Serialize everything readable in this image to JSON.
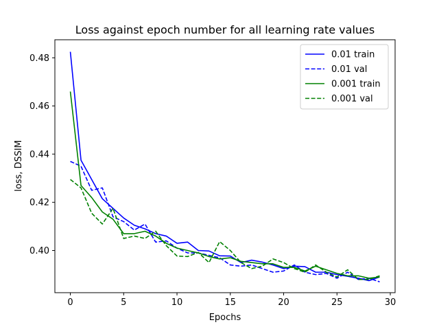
{
  "chart_data": {
    "type": "line",
    "title": "Loss against epoch number for all learning rate values",
    "xlabel": "Epochs",
    "ylabel": "loss, DSSIM",
    "xlim": [
      -1.45,
      30.45
    ],
    "ylim": [
      0.3825,
      0.4875
    ],
    "xticks": [
      0,
      5,
      10,
      15,
      20,
      25,
      30
    ],
    "yticks": [
      0.4,
      0.42,
      0.44,
      0.46,
      0.48
    ],
    "ytick_labels": [
      "0.40",
      "0.42",
      "0.44",
      "0.46",
      "0.48"
    ],
    "grid": false,
    "legend_position": "top-right",
    "x": [
      0,
      1,
      2,
      3,
      4,
      5,
      6,
      7,
      8,
      9,
      10,
      11,
      12,
      13,
      14,
      15,
      16,
      17,
      18,
      19,
      20,
      21,
      22,
      23,
      24,
      25,
      26,
      27,
      28,
      29
    ],
    "series": [
      {
        "name": "0.01 train",
        "color": "#0000ff",
        "dash": "solid",
        "values": [
          0.4825,
          0.4375,
          0.4295,
          0.4215,
          0.4175,
          0.4135,
          0.4105,
          0.409,
          0.407,
          0.406,
          0.403,
          0.4035,
          0.4,
          0.3998,
          0.3978,
          0.3977,
          0.395,
          0.396,
          0.3952,
          0.394,
          0.3925,
          0.3935,
          0.3933,
          0.391,
          0.391,
          0.39,
          0.3893,
          0.3885,
          0.3875,
          0.389
        ]
      },
      {
        "name": "0.01 val",
        "color": "#0000ff",
        "dash": "dashed",
        "values": [
          0.437,
          0.435,
          0.425,
          0.426,
          0.414,
          0.412,
          0.4085,
          0.411,
          0.4035,
          0.404,
          0.401,
          0.399,
          0.399,
          0.398,
          0.397,
          0.394,
          0.3935,
          0.394,
          0.3925,
          0.391,
          0.3915,
          0.394,
          0.391,
          0.39,
          0.3905,
          0.3885,
          0.391,
          0.388,
          0.3885,
          0.387
        ]
      },
      {
        "name": "0.001 train",
        "color": "#008000",
        "dash": "solid",
        "values": [
          0.466,
          0.427,
          0.422,
          0.416,
          0.413,
          0.407,
          0.407,
          0.408,
          0.406,
          0.403,
          0.401,
          0.4,
          0.399,
          0.3975,
          0.3965,
          0.397,
          0.3955,
          0.395,
          0.3945,
          0.3945,
          0.393,
          0.393,
          0.3915,
          0.3935,
          0.392,
          0.3905,
          0.3895,
          0.3895,
          0.3885,
          0.389
        ]
      },
      {
        "name": "0.001 val",
        "color": "#008000",
        "dash": "dashed",
        "values": [
          0.4295,
          0.426,
          0.4155,
          0.411,
          0.4175,
          0.405,
          0.406,
          0.405,
          0.408,
          0.402,
          0.3977,
          0.3975,
          0.3992,
          0.395,
          0.4037,
          0.4,
          0.395,
          0.3925,
          0.3935,
          0.3965,
          0.395,
          0.3925,
          0.391,
          0.394,
          0.391,
          0.389,
          0.392,
          0.388,
          0.388,
          0.3895
        ]
      }
    ]
  }
}
